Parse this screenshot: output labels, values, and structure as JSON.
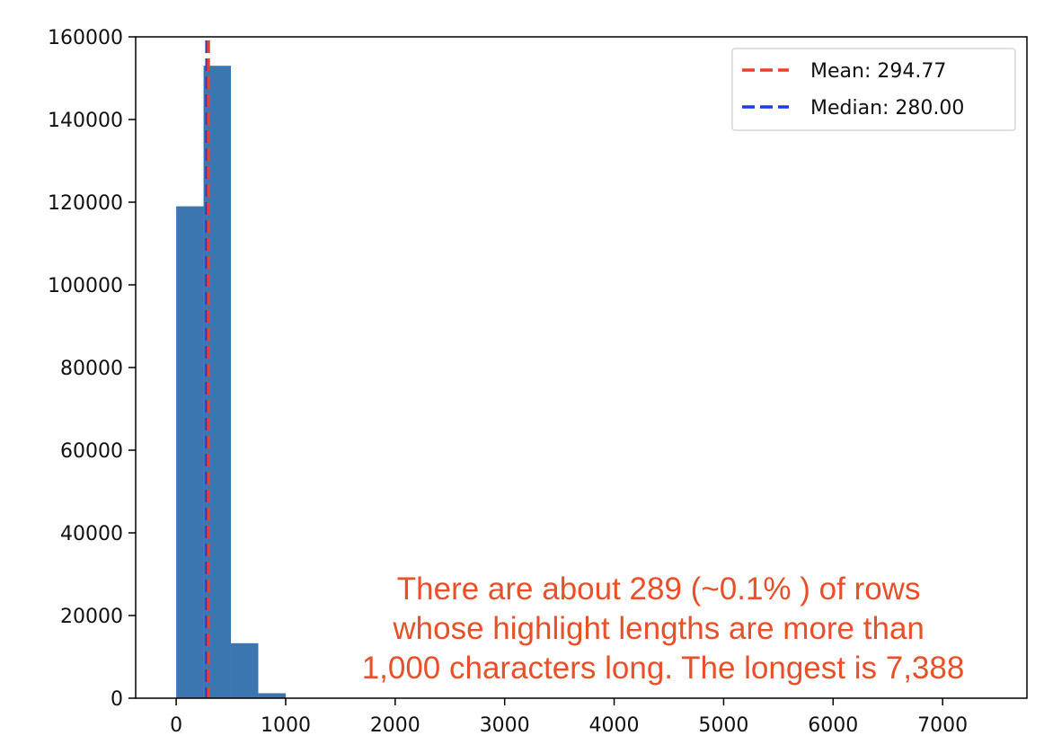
{
  "chart_data": {
    "type": "bar",
    "title": "",
    "xlabel": "",
    "ylabel": "",
    "xlim": [
      -370,
      7770
    ],
    "ylim": [
      0,
      160000
    ],
    "bin_edges": [
      0,
      250,
      500,
      750,
      1000
    ],
    "values": [
      119000,
      153000,
      13300,
      1200
    ],
    "bar_color": "#3b76b0",
    "xticks": [
      0,
      1000,
      2000,
      3000,
      4000,
      5000,
      6000,
      7000
    ],
    "xtick_labels": [
      "0",
      "1000",
      "2000",
      "3000",
      "4000",
      "5000",
      "6000",
      "7000"
    ],
    "yticks": [
      0,
      20000,
      40000,
      60000,
      80000,
      100000,
      120000,
      140000,
      160000
    ],
    "ytick_labels": [
      "0",
      "20000",
      "40000",
      "60000",
      "80000",
      "100000",
      "120000",
      "140000",
      "160000"
    ],
    "grid": false,
    "lines": [
      {
        "label": "Mean: 294.77",
        "x": 294.77,
        "color": "#e8402a",
        "style": "dashed"
      },
      {
        "label": "Median: 280.00",
        "x": 280.0,
        "color": "#1a3cf0",
        "style": "dashed"
      }
    ],
    "legend": {
      "position": "top-right"
    },
    "annotation": {
      "color": "#e8502a",
      "lines": [
        "There are about 289 (~0.1% ) of rows",
        "whose highlight lengths are more than",
        "1,000 characters long. The longest is 7,388"
      ]
    }
  }
}
